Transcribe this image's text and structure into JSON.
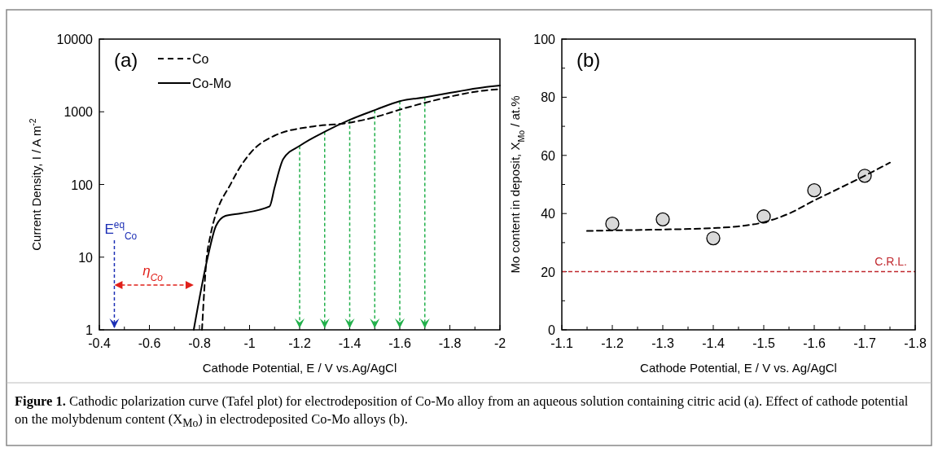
{
  "chart_data": [
    {
      "type": "line",
      "title": "(a)",
      "xlabel": "Cathode Potential, E / V vs.Ag/AgCl",
      "ylabel": "Current Density, I / A m$^{-2}$",
      "log": "y",
      "xlim": [
        -0.4,
        -2
      ],
      "ylim": [
        1,
        10000
      ],
      "xticks": [
        -0.4,
        {
          "value": -0.5,
          "label": null
        },
        -0.6,
        {
          "value": -0.7,
          "label": null
        },
        -0.8,
        {
          "value": -0.9,
          "label": null
        },
        -1,
        {
          "value": -1.1,
          "label": null
        },
        -1.2,
        {
          "value": -1.3,
          "label": null
        },
        -1.4,
        {
          "value": -1.5,
          "label": null
        },
        -1.6,
        {
          "value": -1.7,
          "label": null
        },
        -1.8,
        {
          "value": -1.9,
          "label": null
        },
        -2
      ],
      "yticks": [
        1,
        10,
        100,
        1000,
        10000
      ],
      "legend": "top left",
      "series": [
        {
          "name": "Co",
          "color": "#000000",
          "line_style": "dashed",
          "x": [
            -0.81,
            -0.829,
            -0.842,
            -0.93,
            -1.005,
            -1.1,
            -1.255,
            -1.39,
            -1.505,
            -1.6,
            -1.7,
            -1.96,
            -2
          ],
          "values": [
            1,
            10,
            18.6,
            110,
            275,
            470,
            630,
            700,
            850,
            1070,
            1330,
            2000,
            2050
          ]
        },
        {
          "name": "Co-Mo",
          "color": "#000000",
          "line_style": "solid",
          "x": [
            -0.777,
            -0.833,
            -0.866,
            -0.904,
            -0.966,
            -1.08,
            -1.1,
            -1.135,
            -1.203,
            -1.304,
            -1.4,
            -1.505,
            -1.6,
            -1.7,
            -1.96,
            -2
          ],
          "values": [
            1,
            10,
            27,
            37,
            40,
            50,
            91,
            225,
            345,
            540,
            775,
            1070,
            1400,
            1580,
            2230,
            2300
          ]
        }
      ],
      "ref_lines": [
        {
          "axis": "x",
          "value": -0.46,
          "label": "E$^{eq}$$_{Co}$",
          "color": "#1c2fb5",
          "line_style": "dashed"
        },
        {
          "axis": "x",
          "value": -1.2,
          "color": "#22b04b",
          "line_style": "dashed"
        },
        {
          "axis": "x",
          "value": -1.3,
          "color": "#22b04b",
          "line_style": "dashed"
        },
        {
          "axis": "x",
          "value": -1.4,
          "color": "#22b04b",
          "line_style": "dashed"
        },
        {
          "axis": "x",
          "value": -1.5,
          "color": "#22b04b",
          "line_style": "dashed"
        },
        {
          "axis": "x",
          "value": -1.6,
          "color": "#22b04b",
          "line_style": "dashed"
        },
        {
          "axis": "x",
          "value": -1.7,
          "color": "#22b04b",
          "line_style": "dashed"
        }
      ],
      "annotations": [
        "η$_{Co}$",
        "Figure 1. Cathodic polarization curve (Tafel plot) for electrodeposition of Co-Mo alloy from an aqueous solution containing citric acid (a). Effect of cathode potential on the molybdenum content (X$_{Mo}$) in electrodeposited Co-Mo alloys (b)."
      ]
    },
    {
      "type": "scatter",
      "title": "(b)",
      "xlabel": "Cathode Potential, E / V vs. Ag/AgCl",
      "ylabel": "Mo content in deposit, X$_{Mo}$ / at.%",
      "xlim": [
        -1.1,
        -1.8
      ],
      "ylim": [
        0,
        100
      ],
      "xticks": [
        -1.1,
        {
          "value": -1.15,
          "label": null
        },
        -1.2,
        {
          "value": -1.25,
          "label": null
        },
        -1.3,
        {
          "value": -1.35,
          "label": null
        },
        -1.4,
        {
          "value": -1.45,
          "label": null
        },
        -1.5,
        {
          "value": -1.55,
          "label": null
        },
        -1.6,
        {
          "value": -1.65,
          "label": null
        },
        -1.7,
        {
          "value": -1.75,
          "label": null
        },
        -1.8
      ],
      "yticks": [
        0,
        {
          "value": 10,
          "label": null
        },
        20,
        {
          "value": 30,
          "label": null
        },
        40,
        {
          "value": 50,
          "label": null
        },
        60,
        {
          "value": 70,
          "label": null
        },
        80,
        {
          "value": 90,
          "label": null
        },
        100
      ],
      "series": [
        {
          "marker": "circle",
          "color": "#d9d9d9",
          "x": [
            -1.2,
            -1.3,
            -1.4,
            -1.5,
            -1.6,
            -1.7
          ],
          "values": [
            36.5,
            38,
            31.5,
            39,
            48,
            53
          ]
        },
        {
          "type": "line",
          "color": "#000000",
          "line_style": "dashed",
          "x": [
            -1.15,
            -1.2,
            -1.3,
            -1.4,
            -1.45,
            -1.5,
            -1.55,
            -1.6,
            -1.65,
            -1.7,
            -1.75
          ],
          "values": [
            34,
            34.2,
            34.5,
            35,
            35.6,
            37,
            40,
            44.5,
            48.7,
            53,
            57.5
          ]
        }
      ],
      "ref_lines": [
        {
          "axis": "y",
          "value": 20,
          "label": "C.R.L.",
          "color": "#c0282e",
          "line_style": "dashed"
        }
      ]
    }
  ]
}
